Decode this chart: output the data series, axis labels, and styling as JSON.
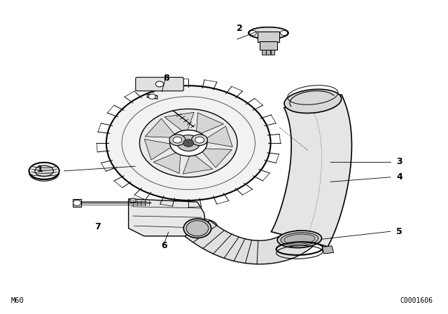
{
  "bg_color": "#ffffff",
  "line_color": "#000000",
  "fig_width": 6.4,
  "fig_height": 4.48,
  "dpi": 100,
  "labels": {
    "1": [
      0.085,
      0.46,
      "1"
    ],
    "2": [
      0.535,
      0.915,
      "2"
    ],
    "3": [
      0.895,
      0.485,
      "3"
    ],
    "4": [
      0.895,
      0.435,
      "4"
    ],
    "5": [
      0.895,
      0.26,
      "5"
    ],
    "6": [
      0.365,
      0.215,
      "6"
    ],
    "7": [
      0.215,
      0.275,
      "7"
    ],
    "8": [
      0.37,
      0.755,
      "8"
    ]
  },
  "footer_left": "M60",
  "footer_right": "C0001606"
}
